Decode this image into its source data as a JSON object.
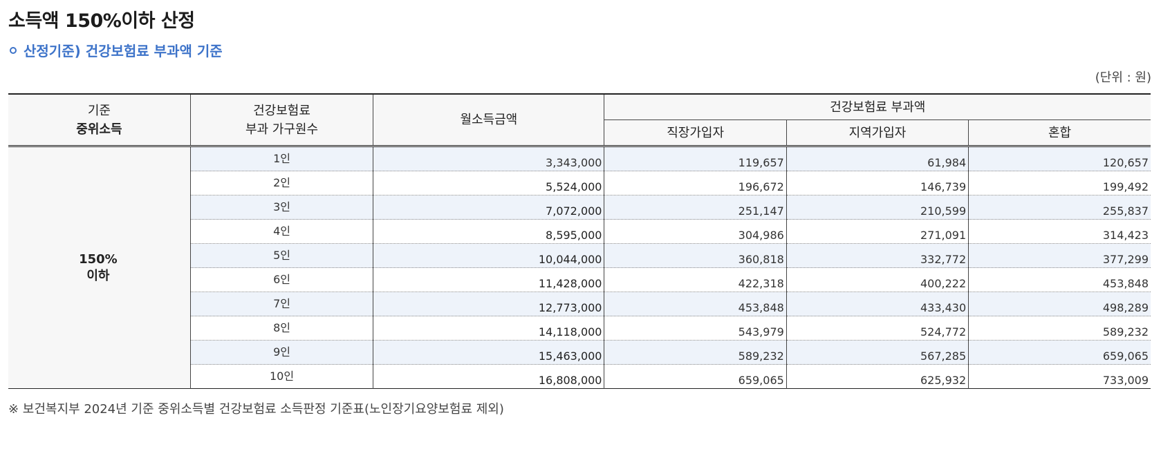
{
  "title": "소득액 150%이하 산정",
  "subtitle": "산정기준) 건강보험료 부과액 기준",
  "unit": "(단위 : 원)",
  "headers": {
    "standard_line1": "기준",
    "standard_line2": "중위소득",
    "household_line1": "건강보험료",
    "household_line2": "부과 가구원수",
    "income": "월소득금액",
    "premium_group": "건강보험료 부과액",
    "employee": "직장가입자",
    "regional": "지역가입자",
    "mixed": "혼합"
  },
  "group": {
    "line1": "150%",
    "line2": "이하"
  },
  "rows": [
    {
      "persons": "1인",
      "income": "3,343,000",
      "employee": "119,657",
      "regional": "61,984",
      "mixed": "120,657"
    },
    {
      "persons": "2인",
      "income": "5,524,000",
      "employee": "196,672",
      "regional": "146,739",
      "mixed": "199,492"
    },
    {
      "persons": "3인",
      "income": "7,072,000",
      "employee": "251,147",
      "regional": "210,599",
      "mixed": "255,837"
    },
    {
      "persons": "4인",
      "income": "8,595,000",
      "employee": "304,986",
      "regional": "271,091",
      "mixed": "314,423"
    },
    {
      "persons": "5인",
      "income": "10,044,000",
      "employee": "360,818",
      "regional": "332,772",
      "mixed": "377,299"
    },
    {
      "persons": "6인",
      "income": "11,428,000",
      "employee": "422,318",
      "regional": "400,222",
      "mixed": "453,848"
    },
    {
      "persons": "7인",
      "income": "12,773,000",
      "employee": "453,848",
      "regional": "433,430",
      "mixed": "498,289"
    },
    {
      "persons": "8인",
      "income": "14,118,000",
      "employee": "543,979",
      "regional": "524,772",
      "mixed": "589,232"
    },
    {
      "persons": "9인",
      "income": "15,463,000",
      "employee": "589,232",
      "regional": "567,285",
      "mixed": "659,065"
    },
    {
      "persons": "10인",
      "income": "16,808,000",
      "employee": "659,065",
      "regional": "625,932",
      "mixed": "733,009"
    }
  ],
  "note": "※ 보건복지부 2024년 기준 중위소득별 건강보험료 소득판정 기준표(노인장기요양보험료 제외)",
  "colors": {
    "accent": "#3d73c9",
    "row_shade": "#eef3fa",
    "header_bg": "#f7f7f7"
  }
}
